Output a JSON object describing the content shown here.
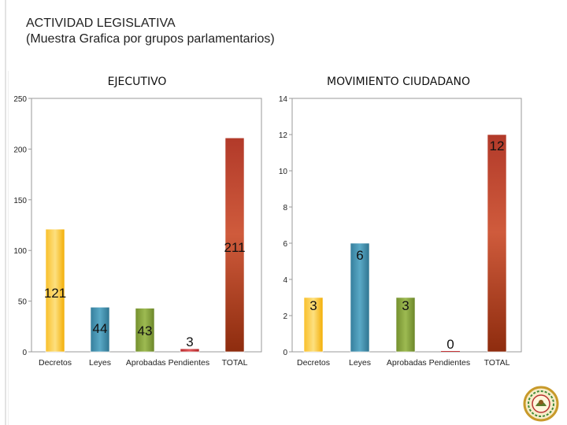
{
  "header": {
    "title_line1": "ACTIVIDAD LEGISLATIVA",
    "title_line2": "(Muestra Grafica por grupos parlamentarios)"
  },
  "chart_data": [
    {
      "type": "bar",
      "title": "EJECUTIVO",
      "categories": [
        "Decretos",
        "Leyes",
        "Aprobadas",
        "Pendientes",
        "TOTAL"
      ],
      "values": [
        121,
        44,
        43,
        3,
        211
      ],
      "data_labels": [
        "121",
        "44",
        "43",
        "3",
        "211"
      ],
      "ylim": [
        0,
        250
      ],
      "yticks": [
        0,
        50,
        100,
        150,
        200,
        250
      ],
      "xlabel": "",
      "ylabel": "",
      "grid": false,
      "colors": [
        "#f6b60f",
        "#3d8ba8",
        "#7f9c35",
        "#c8383a",
        "#a8371a"
      ]
    },
    {
      "type": "bar",
      "title": "MOVIMIENTO CIUDADANO",
      "categories": [
        "Decretos",
        "Leyes",
        "Aprobadas",
        "Pendientes",
        "TOTAL"
      ],
      "values": [
        3,
        6,
        3,
        0,
        12
      ],
      "data_labels": [
        "3",
        "6",
        "3",
        "0",
        "12"
      ],
      "ylim": [
        0,
        14
      ],
      "yticks": [
        0,
        2,
        4,
        6,
        8,
        10,
        12,
        14
      ],
      "xlabel": "",
      "ylabel": "",
      "grid": false,
      "colors": [
        "#f6b60f",
        "#3d8ba8",
        "#7f9c35",
        "#c8383a",
        "#a8371a"
      ]
    }
  ],
  "emblem": {
    "icon": "seal-icon"
  }
}
